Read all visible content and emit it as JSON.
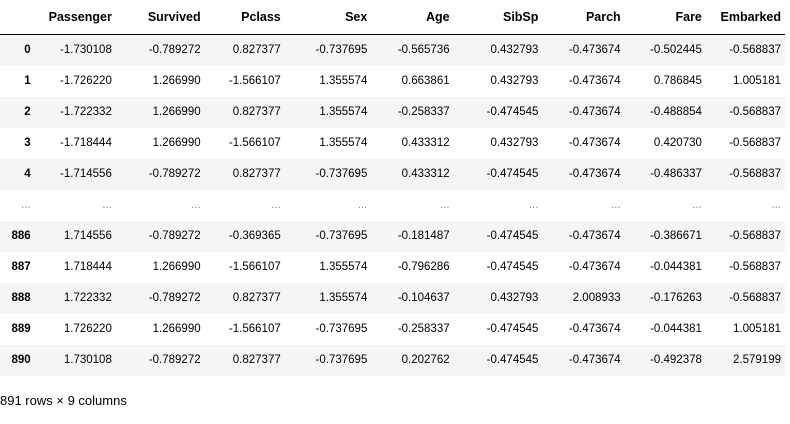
{
  "dataframe": {
    "index_header": "",
    "columns": [
      "Passenger",
      "Survived",
      "Pclass",
      "Sex",
      "Age",
      "SibSp",
      "Parch",
      "Fare",
      "Embarked"
    ],
    "rows": [
      {
        "index": "0",
        "values": [
          "-1.730108",
          "-0.789272",
          "0.827377",
          "-0.737695",
          "-0.565736",
          "0.432793",
          "-0.473674",
          "-0.502445",
          "-0.568837"
        ]
      },
      {
        "index": "1",
        "values": [
          "-1.726220",
          "1.266990",
          "-1.566107",
          "1.355574",
          "0.663861",
          "0.432793",
          "-0.473674",
          "0.786845",
          "1.005181"
        ]
      },
      {
        "index": "2",
        "values": [
          "-1.722332",
          "1.266990",
          "0.827377",
          "1.355574",
          "-0.258337",
          "-0.474545",
          "-0.473674",
          "-0.488854",
          "-0.568837"
        ]
      },
      {
        "index": "3",
        "values": [
          "-1.718444",
          "1.266990",
          "-1.566107",
          "1.355574",
          "0.433312",
          "0.432793",
          "-0.473674",
          "0.420730",
          "-0.568837"
        ]
      },
      {
        "index": "4",
        "values": [
          "-1.714556",
          "-0.789272",
          "0.827377",
          "-0.737695",
          "0.433312",
          "-0.474545",
          "-0.473674",
          "-0.486337",
          "-0.568837"
        ]
      },
      {
        "index": "...",
        "values": [
          "...",
          "...",
          "...",
          "...",
          "...",
          "...",
          "...",
          "...",
          "..."
        ]
      },
      {
        "index": "886",
        "values": [
          "1.714556",
          "-0.789272",
          "-0.369365",
          "-0.737695",
          "-0.181487",
          "-0.474545",
          "-0.473674",
          "-0.386671",
          "-0.568837"
        ]
      },
      {
        "index": "887",
        "values": [
          "1.718444",
          "1.266990",
          "-1.566107",
          "1.355574",
          "-0.796286",
          "-0.474545",
          "-0.473674",
          "-0.044381",
          "-0.568837"
        ]
      },
      {
        "index": "888",
        "values": [
          "1.722332",
          "-0.789272",
          "0.827377",
          "1.355574",
          "-0.104637",
          "0.432793",
          "2.008933",
          "-0.176263",
          "-0.568837"
        ]
      },
      {
        "index": "889",
        "values": [
          "1.726220",
          "1.266990",
          "-1.566107",
          "-0.737695",
          "-0.258337",
          "-0.474545",
          "-0.473674",
          "-0.044381",
          "1.005181"
        ]
      },
      {
        "index": "890",
        "values": [
          "1.730108",
          "-0.789272",
          "0.827377",
          "-0.737695",
          "0.202762",
          "-0.474545",
          "-0.473674",
          "-0.492378",
          "2.579199"
        ]
      }
    ],
    "shape_text": "891 rows × 9 columns"
  }
}
